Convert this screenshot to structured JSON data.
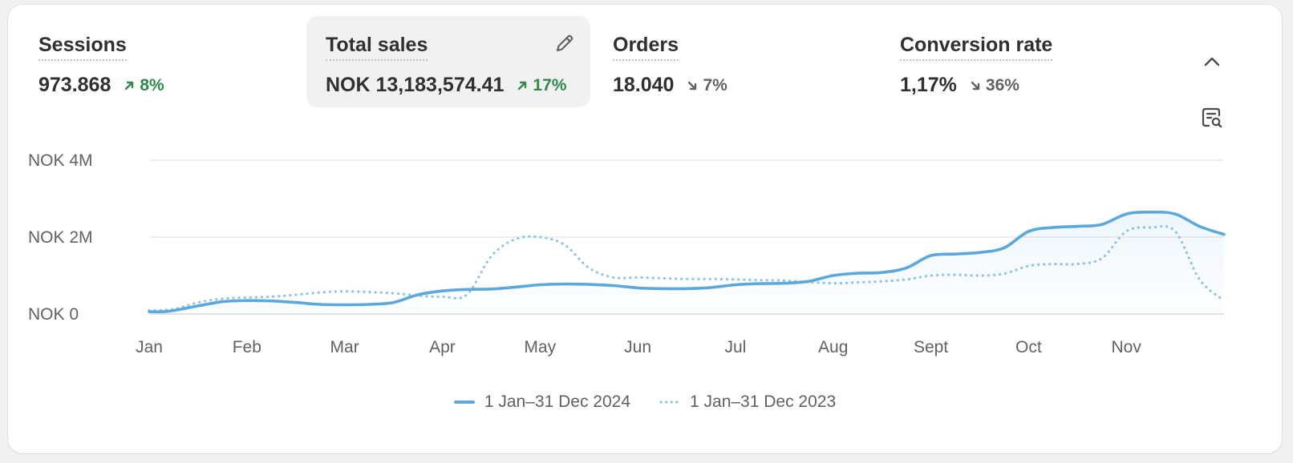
{
  "metrics": [
    {
      "label": "Sessions",
      "value": "973.868",
      "change": "8%",
      "direction": "up"
    },
    {
      "label": "Total sales",
      "value": "NOK 13,183,574.41",
      "change": "17%",
      "direction": "up"
    },
    {
      "label": "Orders",
      "value": "18.040",
      "change": "7%",
      "direction": "down"
    },
    {
      "label": "Conversion rate",
      "value": "1,17%",
      "change": "36%",
      "direction": "down"
    }
  ],
  "icons": {
    "edit": "pencil-icon",
    "collapse": "chevron-up-icon",
    "report": "report-search-icon"
  },
  "colors": {
    "primary_line": "#5aa8de",
    "comparison_line": "#8cc3e8",
    "positive": "#2f8a4a",
    "neutral": "#616161"
  },
  "chart_data": {
    "type": "line",
    "categories": [
      "Jan",
      "Feb",
      "Mar",
      "Apr",
      "May",
      "Jun",
      "Jul",
      "Aug",
      "Sept",
      "Oct",
      "Nov"
    ],
    "y_ticks": [
      "NOK 0",
      "NOK 2M",
      "NOK 4M"
    ],
    "ylim": [
      0,
      4000000
    ],
    "grid": true,
    "legend_position": "bottom-center",
    "series": [
      {
        "name": "1 Jan–31 Dec 2024",
        "style": "solid",
        "x": [
          0,
          0.2,
          0.5,
          0.75,
          1,
          1.25,
          1.5,
          1.75,
          2,
          2.25,
          2.5,
          2.75,
          3,
          3.25,
          3.5,
          3.75,
          4,
          4.25,
          4.5,
          4.75,
          5,
          5.25,
          5.5,
          5.75,
          6,
          6.25,
          6.5,
          6.75,
          7,
          7.25,
          7.5,
          7.75,
          8,
          8.25,
          8.5,
          8.75,
          9,
          9.25,
          9.5,
          9.75,
          10,
          10.25,
          10.5,
          10.75,
          11
        ],
        "values": [
          60000,
          70000,
          210000,
          320000,
          350000,
          340000,
          300000,
          250000,
          240000,
          250000,
          300000,
          500000,
          600000,
          640000,
          650000,
          700000,
          760000,
          780000,
          770000,
          740000,
          680000,
          660000,
          660000,
          690000,
          760000,
          790000,
          800000,
          850000,
          1000000,
          1060000,
          1080000,
          1200000,
          1520000,
          1560000,
          1600000,
          1720000,
          2150000,
          2250000,
          2280000,
          2330000,
          2600000,
          2650000,
          2600000,
          2280000,
          2070000
        ]
      },
      {
        "name": "1 Jan–31 Dec 2023",
        "style": "dotted",
        "x": [
          0,
          0.25,
          0.5,
          0.75,
          1,
          1.25,
          1.5,
          1.75,
          2,
          2.25,
          2.5,
          2.75,
          3,
          3.25,
          3.5,
          3.75,
          4,
          4.25,
          4.5,
          4.75,
          5,
          5.25,
          5.5,
          5.75,
          6,
          6.25,
          6.5,
          6.75,
          7,
          7.25,
          7.5,
          7.75,
          8,
          8.25,
          8.5,
          8.75,
          9,
          9.25,
          9.5,
          9.75,
          10,
          10.25,
          10.5,
          10.75,
          11
        ],
        "values": [
          90000,
          130000,
          300000,
          400000,
          430000,
          450000,
          500000,
          560000,
          590000,
          570000,
          540000,
          480000,
          450000,
          500000,
          1500000,
          1950000,
          2000000,
          1800000,
          1200000,
          950000,
          950000,
          930000,
          910000,
          910000,
          900000,
          880000,
          870000,
          830000,
          800000,
          820000,
          850000,
          900000,
          1000000,
          1020000,
          1000000,
          1050000,
          1250000,
          1300000,
          1300000,
          1450000,
          2150000,
          2250000,
          2150000,
          900000,
          350000
        ]
      }
    ]
  }
}
